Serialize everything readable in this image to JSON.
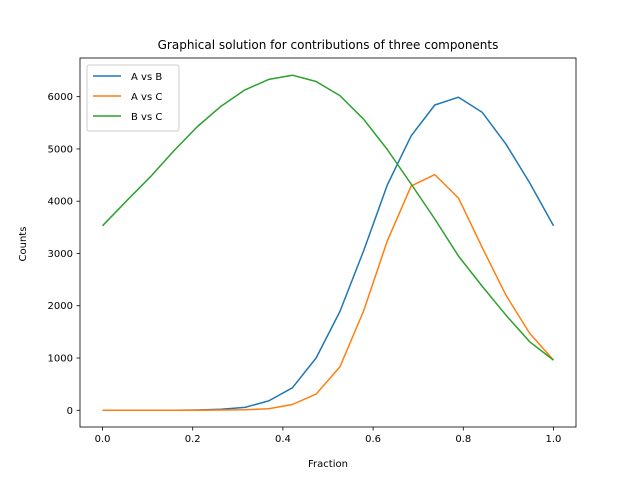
{
  "chart_data": {
    "type": "line",
    "title": "Graphical solution for contributions of three components",
    "xlabel": "Fraction",
    "ylabel": "Counts",
    "xlim": [
      -0.05,
      1.05
    ],
    "ylim": [
      -320,
      6740
    ],
    "xticks": [
      0.0,
      0.2,
      0.4,
      0.6,
      0.8,
      1.0
    ],
    "xtick_labels": [
      "0.0",
      "0.2",
      "0.4",
      "0.6",
      "0.8",
      "1.0"
    ],
    "yticks": [
      0,
      1000,
      2000,
      3000,
      4000,
      5000,
      6000
    ],
    "ytick_labels": [
      "0",
      "1000",
      "2000",
      "3000",
      "4000",
      "5000",
      "6000"
    ],
    "grid": false,
    "legend_position": "upper-left",
    "x": [
      0.0,
      0.0526,
      0.1053,
      0.1579,
      0.2105,
      0.2632,
      0.3158,
      0.3684,
      0.4211,
      0.4737,
      0.5263,
      0.5789,
      0.6316,
      0.6842,
      0.7368,
      0.7895,
      0.8421,
      0.8947,
      0.9474,
      1.0
    ],
    "series": [
      {
        "name": "A vs B",
        "color": "#1f77b4",
        "values": [
          0,
          0,
          0,
          0,
          5,
          20,
          55,
          180,
          430,
          1000,
          1890,
          3050,
          4310,
          5250,
          5840,
          5990,
          5700,
          5090,
          4350,
          3530
        ]
      },
      {
        "name": "A vs C",
        "color": "#ff7f0e",
        "values": [
          0,
          0,
          0,
          0,
          0,
          5,
          10,
          30,
          110,
          310,
          830,
          1900,
          3240,
          4290,
          4510,
          4060,
          3110,
          2200,
          1470,
          960
        ]
      },
      {
        "name": "B vs C",
        "color": "#2ca02c",
        "values": [
          3530,
          4000,
          4460,
          4960,
          5430,
          5820,
          6130,
          6330,
          6410,
          6290,
          6020,
          5570,
          4990,
          4330,
          3660,
          2950,
          2370,
          1820,
          1310,
          960
        ]
      }
    ]
  }
}
